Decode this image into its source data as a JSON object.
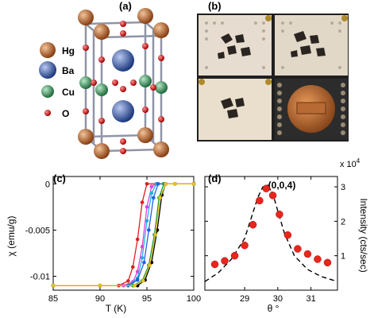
{
  "panels": {
    "a": "(a)",
    "b": "(b)",
    "c": "(c)",
    "d": "(d)"
  },
  "legend": [
    {
      "name": "Hg",
      "color": "#c8703a"
    },
    {
      "name": "Ba",
      "color": "#3f63a8"
    },
    {
      "name": "Cu",
      "color": "#3f9a62"
    },
    {
      "name": "O",
      "color": "#d62020"
    }
  ],
  "chart_data": [
    {
      "type": "line",
      "panel": "(c)",
      "xlabel": "T (K)",
      "ylabel": "χ (emu/g)",
      "xlim": [
        85,
        100
      ],
      "ylim": [
        -0.0115,
        0.0008
      ],
      "xticks": [
        "85",
        "90",
        "95",
        "100"
      ],
      "yticks": [
        "0",
        "-0.005",
        "-0.01"
      ],
      "series": [
        {
          "color": "#e02020",
          "x": [
            85,
            90,
            92,
            93,
            93.5,
            94,
            94.5,
            95,
            96,
            98,
            100
          ],
          "values": [
            -0.011,
            -0.011,
            -0.011,
            -0.0105,
            -0.009,
            -0.006,
            -0.002,
            0,
            0,
            0,
            0
          ]
        },
        {
          "color": "#e040e0",
          "x": [
            85,
            90,
            92.5,
            93.5,
            94,
            94.5,
            95,
            95.5,
            96,
            98,
            100
          ],
          "values": [
            -0.011,
            -0.011,
            -0.011,
            -0.0106,
            -0.0095,
            -0.0068,
            -0.0025,
            -0.0003,
            0,
            0,
            0
          ]
        },
        {
          "color": "#20b0e0",
          "x": [
            85,
            90,
            93,
            94,
            94.5,
            95,
            95.5,
            96,
            97,
            100
          ],
          "values": [
            -0.011,
            -0.011,
            -0.011,
            -0.0102,
            -0.008,
            -0.004,
            -0.001,
            0,
            0,
            0
          ]
        },
        {
          "color": "#2060e0",
          "x": [
            85,
            90,
            93,
            94,
            94.7,
            95.2,
            95.7,
            96.2,
            97,
            100
          ],
          "values": [
            -0.011,
            -0.011,
            -0.011,
            -0.0104,
            -0.0085,
            -0.005,
            -0.0015,
            0,
            0,
            0
          ]
        },
        {
          "color": "#10a040",
          "x": [
            85,
            90,
            93.5,
            94.5,
            95.2,
            95.8,
            96.3,
            96.8,
            98,
            100
          ],
          "values": [
            -0.011,
            -0.011,
            -0.011,
            -0.0105,
            -0.0088,
            -0.0055,
            -0.0015,
            0,
            0,
            0
          ]
        },
        {
          "color": "#000000",
          "x": [
            85,
            90,
            94,
            94.8,
            95.5,
            96.1,
            96.6,
            97,
            98,
            100
          ],
          "values": [
            -0.011,
            -0.011,
            -0.011,
            -0.0104,
            -0.0085,
            -0.005,
            -0.0012,
            0,
            0,
            0
          ]
        },
        {
          "color": "#e8c020",
          "x": [
            85,
            90,
            93.7,
            94.6,
            95.3,
            95.9,
            96.4,
            97,
            98,
            100
          ],
          "values": [
            -0.011,
            -0.011,
            -0.011,
            -0.0105,
            -0.0088,
            -0.0055,
            -0.0015,
            0,
            0,
            0
          ]
        }
      ]
    },
    {
      "type": "scatter",
      "panel": "(d)",
      "annotation": "(0,0,4)",
      "xlabel": "θ °",
      "ylabel": "Intensity (cts/sec)",
      "exponent": "x 10",
      "exponent_power": "4",
      "xlim": [
        27.8,
        31.8
      ],
      "ylim": [
        0,
        33000
      ],
      "xticks": [
        "29",
        "30",
        "31"
      ],
      "yticks": [
        "1",
        "2",
        "3"
      ],
      "points": {
        "x": [
          28.1,
          28.4,
          28.7,
          29.0,
          29.25,
          29.45,
          29.65,
          29.85,
          30.05,
          30.3,
          30.6,
          30.9,
          31.2,
          31.5
        ],
        "values": [
          7500,
          8500,
          10000,
          13000,
          19000,
          26000,
          29500,
          27500,
          22000,
          16000,
          12000,
          10500,
          9000,
          8000
        ]
      },
      "fit": {
        "x": [
          27.8,
          28.2,
          28.6,
          29.0,
          29.2,
          29.4,
          29.55,
          29.7,
          29.85,
          30.0,
          30.2,
          30.5,
          30.9,
          31.3,
          31.8
        ],
        "values": [
          2500,
          5000,
          9000,
          15000,
          21000,
          27000,
          30000,
          30500,
          28000,
          23000,
          16500,
          10000,
          6000,
          4000,
          2500
        ]
      }
    }
  ]
}
